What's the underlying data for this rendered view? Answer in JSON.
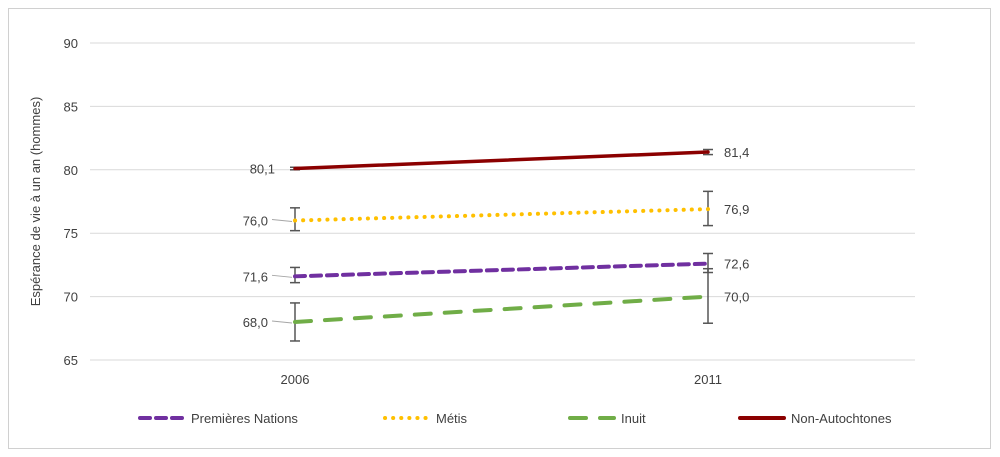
{
  "chart_data": {
    "type": "line",
    "title": "",
    "xlabel": "",
    "ylabel": "Espérance de vie à un an (hommes)",
    "ylim": [
      65,
      90
    ],
    "yticks": [
      65,
      70,
      75,
      80,
      85,
      90
    ],
    "grid": true,
    "legend_position": "bottom",
    "categories": [
      "2006",
      "2011"
    ],
    "series": [
      {
        "name": "Premières Nations",
        "values": [
          71.6,
          72.6
        ],
        "labels": [
          "71,6",
          "72,6"
        ],
        "color": "#7030a0",
        "style": "dashed",
        "error_low": [
          71.1,
          71.9
        ],
        "error_high": [
          72.3,
          73.4
        ]
      },
      {
        "name": "Métis",
        "values": [
          76.0,
          76.9
        ],
        "labels": [
          "76,0",
          "76,9"
        ],
        "color": "#ffc000",
        "style": "dotted",
        "error_low": [
          75.2,
          75.6
        ],
        "error_high": [
          77.0,
          78.3
        ]
      },
      {
        "name": "Inuit",
        "values": [
          68.0,
          70.0
        ],
        "labels": [
          "68,0",
          "70,0"
        ],
        "color": "#70ad47",
        "style": "longdash",
        "error_low": [
          66.5,
          67.9
        ],
        "error_high": [
          69.5,
          72.2
        ]
      },
      {
        "name": "Non-Autochtones",
        "values": [
          80.1,
          81.4
        ],
        "labels": [
          "80,1",
          "81,4"
        ],
        "color": "#8b0000",
        "style": "solid",
        "error_low": [
          80.0,
          81.2
        ],
        "error_high": [
          80.2,
          81.6
        ]
      }
    ]
  }
}
